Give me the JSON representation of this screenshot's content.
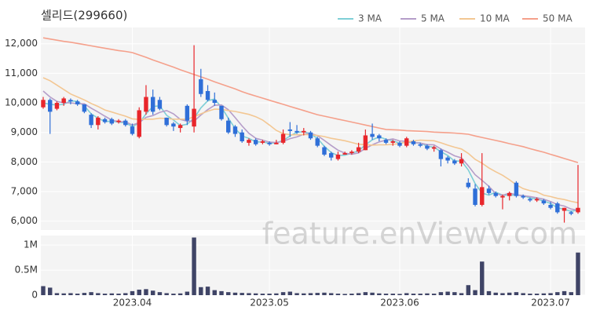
{
  "chart_data": {
    "type": "candlestick",
    "title": "셀리드(299660)",
    "watermark": "feature.enViewV.com",
    "categories": [
      null,
      null,
      null,
      null,
      null,
      null,
      null,
      null,
      null,
      null,
      null,
      null,
      null,
      "2023.04",
      null,
      null,
      null,
      null,
      null,
      null,
      null,
      null,
      null,
      null,
      null,
      null,
      null,
      null,
      null,
      null,
      null,
      null,
      null,
      "2023.05",
      null,
      null,
      null,
      null,
      null,
      null,
      null,
      null,
      null,
      null,
      null,
      null,
      null,
      null,
      null,
      null,
      null,
      null,
      "2023.06",
      null,
      null,
      null,
      null,
      null,
      null,
      null,
      null,
      null,
      null,
      null,
      null,
      null,
      null,
      null,
      null,
      null,
      null,
      null,
      null,
      null,
      "2023.07",
      null,
      null,
      null,
      null
    ],
    "open": [
      9850,
      10100,
      9800,
      10000,
      10100,
      10050,
      9950,
      9600,
      9250,
      9450,
      9450,
      9350,
      9400,
      9200,
      8850,
      9700,
      10200,
      10100,
      9500,
      9300,
      9150,
      9900,
      9200,
      10800,
      10400,
      10100,
      9900,
      9400,
      9200,
      9000,
      8650,
      8750,
      8650,
      8650,
      8600,
      8650,
      9100,
      9050,
      9000,
      9000,
      8800,
      8500,
      8300,
      8100,
      8250,
      8300,
      8350,
      8400,
      8950,
      8900,
      8750,
      8650,
      8650,
      8550,
      8700,
      8600,
      8550,
      8450,
      8400,
      8150,
      8050,
      7950,
      7300,
      7100,
      6550,
      7100,
      6950,
      6800,
      6850,
      7300,
      6850,
      6750,
      6700,
      6700,
      6550,
      6600,
      6350,
      6300,
      6300
    ],
    "high": [
      10200,
      10150,
      10050,
      10200,
      10150,
      10100,
      9950,
      9650,
      9550,
      9500,
      9500,
      9450,
      9450,
      9300,
      9850,
      10600,
      10450,
      10200,
      9500,
      9350,
      9300,
      9950,
      11950,
      11150,
      10600,
      10350,
      9900,
      9500,
      9250,
      9100,
      8800,
      8800,
      8750,
      8700,
      8750,
      9100,
      9350,
      9250,
      9150,
      9050,
      8850,
      8550,
      8350,
      8350,
      8350,
      8400,
      8650,
      9100,
      9300,
      8950,
      8800,
      8750,
      8700,
      8850,
      8750,
      8650,
      8600,
      8550,
      8450,
      8200,
      8100,
      8300,
      7450,
      7250,
      8300,
      7200,
      7000,
      6900,
      7000,
      7350,
      6900,
      6800,
      6800,
      6750,
      6650,
      6650,
      6450,
      6350,
      7900
    ],
    "low": [
      9800,
      8950,
      9750,
      9900,
      9950,
      9900,
      9650,
      9150,
      9100,
      9300,
      9250,
      9300,
      9200,
      8900,
      8800,
      9600,
      9600,
      9750,
      9200,
      9050,
      9000,
      9250,
      9000,
      10200,
      10050,
      9900,
      9400,
      8950,
      8850,
      8650,
      8550,
      8550,
      8600,
      8550,
      8600,
      8600,
      8850,
      8950,
      8900,
      8750,
      8500,
      8200,
      8050,
      8050,
      8250,
      8250,
      8300,
      8400,
      8750,
      8700,
      8600,
      8550,
      8500,
      8500,
      8550,
      8500,
      8400,
      8350,
      7850,
      7950,
      7900,
      7850,
      7100,
      6500,
      6500,
      6900,
      6800,
      6400,
      6700,
      6800,
      6750,
      6650,
      6650,
      6550,
      6400,
      6250,
      5950,
      6200,
      6250
    ],
    "close": [
      10100,
      9700,
      10000,
      10150,
      10050,
      9950,
      9700,
      9250,
      9500,
      9350,
      9300,
      9400,
      9250,
      8950,
      9750,
      10200,
      9700,
      9800,
      9250,
      9200,
      9250,
      9400,
      9800,
      10300,
      10100,
      10000,
      9450,
      9000,
      8950,
      8700,
      8750,
      8600,
      8700,
      8600,
      8650,
      8950,
      9050,
      9000,
      9050,
      8800,
      8550,
      8250,
      8150,
      8250,
      8300,
      8350,
      8500,
      8900,
      8850,
      8800,
      8650,
      8700,
      8550,
      8800,
      8600,
      8550,
      8450,
      8500,
      8100,
      8050,
      7950,
      8100,
      7150,
      6550,
      7150,
      6950,
      6850,
      6850,
      6950,
      6850,
      6800,
      6700,
      6750,
      6600,
      6450,
      6300,
      6450,
      6250,
      6450
    ],
    "up_color": "#e8262b",
    "down_color": "#2f6fd8",
    "ylim": [
      5700,
      12550
    ],
    "yticks": [
      {
        "value": 6000,
        "label": "6,000"
      },
      {
        "value": 7000,
        "label": "7,000"
      },
      {
        "value": 8000,
        "label": "8,000"
      },
      {
        "value": 9000,
        "label": "9,000"
      },
      {
        "value": 10000,
        "label": "10,000"
      },
      {
        "value": 11000,
        "label": "11,000"
      },
      {
        "value": 12000,
        "label": "12,000"
      }
    ],
    "grid": true,
    "legend_position": "top-right",
    "series": [
      {
        "name": "3 MA",
        "color": "#7fcfd6",
        "values": [
          10000,
          9950,
          9930,
          9950,
          10070,
          10050,
          9900,
          9630,
          9480,
          9370,
          9380,
          9350,
          9320,
          9200,
          9320,
          9630,
          9880,
          9900,
          9580,
          9420,
          9230,
          9280,
          9480,
          9830,
          10070,
          10130,
          9850,
          9480,
          9130,
          8880,
          8800,
          8680,
          8680,
          8630,
          8650,
          8730,
          8880,
          9000,
          9030,
          8950,
          8800,
          8530,
          8320,
          8220,
          8230,
          8300,
          8380,
          8580,
          8750,
          8850,
          8770,
          8720,
          8630,
          8680,
          8650,
          8650,
          8530,
          8500,
          8350,
          8220,
          8030,
          8030,
          7730,
          7270,
          6950,
          6880,
          6980,
          6880,
          6880,
          6880,
          6870,
          6780,
          6750,
          6680,
          6600,
          6450,
          6400,
          6330,
          6380
        ]
      },
      {
        "name": "5 MA",
        "color": "#b59dc9",
        "values": [
          10400,
          10200,
          10050,
          10000,
          10000,
          9970,
          9970,
          9820,
          9690,
          9550,
          9420,
          9360,
          9360,
          9250,
          9330,
          9510,
          9570,
          9680,
          9740,
          9630,
          9440,
          9380,
          9380,
          9590,
          9770,
          9920,
          9930,
          9770,
          9500,
          9220,
          8970,
          8800,
          8740,
          8670,
          8660,
          8700,
          8790,
          8850,
          8940,
          8970,
          8890,
          8730,
          8560,
          8400,
          8300,
          8260,
          8310,
          8460,
          8580,
          8680,
          8740,
          8780,
          8710,
          8700,
          8660,
          8640,
          8590,
          8580,
          8440,
          8330,
          8210,
          8140,
          7870,
          7570,
          7380,
          7180,
          6930,
          6870,
          6950,
          6890,
          6860,
          6830,
          6790,
          6740,
          6660,
          6560,
          6510,
          6410,
          6370
        ]
      },
      {
        "name": "10 MA",
        "color": "#f3c793",
        "values": [
          10850,
          10750,
          10600,
          10450,
          10300,
          10200,
          10100,
          9980,
          9880,
          9760,
          9690,
          9620,
          9550,
          9460,
          9440,
          9450,
          9450,
          9480,
          9470,
          9450,
          9450,
          9450,
          9530,
          9630,
          9720,
          9790,
          9780,
          9740,
          9710,
          9660,
          9610,
          9530,
          9420,
          9250,
          9070,
          8960,
          8920,
          8920,
          8930,
          8920,
          8900,
          8860,
          8800,
          8760,
          8720,
          8660,
          8600,
          8590,
          8570,
          8580,
          8580,
          8600,
          8620,
          8680,
          8710,
          8740,
          8730,
          8720,
          8650,
          8570,
          8500,
          8440,
          8290,
          8090,
          7960,
          7800,
          7670,
          7550,
          7400,
          7230,
          7100,
          7030,
          6990,
          6880,
          6830,
          6770,
          6730,
          6670,
          6620
        ]
      },
      {
        "name": "50 MA",
        "color": "#f5a08b",
        "values": [
          12200,
          12160,
          12120,
          12080,
          12050,
          12010,
          11970,
          11930,
          11890,
          11850,
          11810,
          11770,
          11740,
          11700,
          11620,
          11540,
          11450,
          11370,
          11290,
          11210,
          11120,
          11040,
          10960,
          10880,
          10800,
          10710,
          10630,
          10550,
          10470,
          10380,
          10300,
          10230,
          10160,
          10090,
          10020,
          9950,
          9880,
          9810,
          9740,
          9670,
          9600,
          9550,
          9500,
          9450,
          9400,
          9350,
          9300,
          9250,
          9200,
          9150,
          9100,
          9090,
          9080,
          9060,
          9050,
          9040,
          9030,
          9010,
          9000,
          8990,
          8980,
          8960,
          8940,
          8880,
          8830,
          8780,
          8730,
          8680,
          8620,
          8570,
          8520,
          8450,
          8390,
          8330,
          8260,
          8190,
          8120,
          8050,
          7980
        ]
      }
    ],
    "volume": {
      "color": "#3f4466",
      "ylim": [
        0,
        1190000
      ],
      "yticks": [
        0,
        {
          "value": 500000,
          "label": "0.5M"
        },
        {
          "value": 1000000,
          "label": "1M"
        }
      ],
      "values": [
        180000,
        150000,
        40000,
        35000,
        40000,
        30000,
        45000,
        60000,
        40000,
        30000,
        35000,
        30000,
        40000,
        80000,
        110000,
        120000,
        90000,
        60000,
        40000,
        30000,
        35000,
        70000,
        1150000,
        160000,
        170000,
        100000,
        80000,
        60000,
        50000,
        45000,
        40000,
        35000,
        30000,
        30000,
        35000,
        60000,
        70000,
        40000,
        35000,
        40000,
        45000,
        50000,
        40000,
        30000,
        25000,
        30000,
        40000,
        60000,
        50000,
        35000,
        30000,
        30000,
        25000,
        40000,
        30000,
        30000,
        35000,
        30000,
        60000,
        70000,
        60000,
        40000,
        200000,
        100000,
        670000,
        80000,
        50000,
        40000,
        50000,
        60000,
        40000,
        30000,
        30000,
        35000,
        40000,
        60000,
        80000,
        60000,
        850000
      ]
    }
  }
}
